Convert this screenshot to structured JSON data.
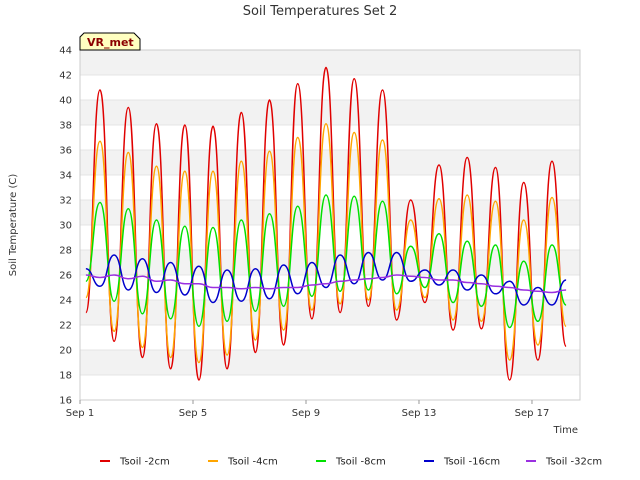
{
  "chart_data": {
    "type": "line",
    "title": "Soil Temperatures Set 2",
    "xlabel": "Time",
    "ylabel": "Soil Temperature (C)",
    "station_badge": "VR_met",
    "xlim": [
      "2025-09-01",
      "2025-09-18.7"
    ],
    "ylim": [
      16,
      44
    ],
    "yticks": [
      16,
      18,
      20,
      22,
      24,
      26,
      28,
      30,
      32,
      34,
      36,
      38,
      40,
      42,
      44
    ],
    "xticks": [
      {
        "date": "2025-09-01",
        "label": "Sep 1"
      },
      {
        "date": "2025-09-05",
        "label": "Sep 5"
      },
      {
        "date": "2025-09-09",
        "label": "Sep 9"
      },
      {
        "date": "2025-09-13",
        "label": "Sep 13"
      },
      {
        "date": "2025-09-17",
        "label": "Sep 17"
      }
    ],
    "grid": "horizontal-bands",
    "legend_placement": "bottom",
    "x_start": "2025-09-01 05:00",
    "x_step_hours": 12,
    "series": [
      {
        "name": "Tsoil -2cm",
        "color": "#e00000",
        "values": [
          23.0,
          40.8,
          20.7,
          39.4,
          19.4,
          38.1,
          18.5,
          38.0,
          17.6,
          37.9,
          18.5,
          39.0,
          19.8,
          40.0,
          20.4,
          41.3,
          22.5,
          42.6,
          23.0,
          41.7,
          23.5,
          40.8,
          22.4,
          32.0,
          23.8,
          34.8,
          21.6,
          35.4,
          21.7,
          34.6,
          17.6,
          33.4,
          19.2,
          35.1,
          20.3
        ]
      },
      {
        "name": "Tsoil -4cm",
        "color": "#ffa500",
        "values": [
          24.2,
          36.7,
          21.5,
          35.8,
          20.2,
          34.7,
          19.4,
          34.3,
          19.0,
          34.3,
          19.6,
          35.1,
          20.8,
          35.9,
          21.6,
          37.0,
          23.2,
          38.1,
          23.7,
          37.4,
          24.0,
          36.8,
          23.2,
          30.4,
          24.2,
          32.1,
          22.4,
          32.4,
          22.3,
          31.9,
          19.2,
          30.4,
          20.4,
          32.2,
          21.9
        ]
      },
      {
        "name": "Tsoil -8cm",
        "color": "#00e000",
        "values": [
          25.5,
          31.8,
          23.9,
          31.3,
          22.9,
          30.4,
          22.5,
          29.9,
          21.9,
          29.8,
          22.3,
          30.4,
          23.1,
          30.9,
          23.5,
          31.5,
          24.3,
          32.4,
          24.7,
          32.3,
          24.8,
          31.9,
          24.5,
          28.3,
          25.0,
          29.3,
          23.8,
          28.7,
          23.5,
          28.4,
          21.8,
          27.1,
          22.3,
          28.4,
          23.6
        ]
      },
      {
        "name": "Tsoil -16cm",
        "color": "#0000cc",
        "values": [
          26.5,
          25.1,
          27.6,
          24.8,
          27.3,
          24.6,
          27.0,
          24.4,
          26.7,
          23.8,
          26.4,
          23.9,
          26.5,
          24.1,
          26.8,
          24.5,
          27.0,
          25.0,
          27.6,
          25.3,
          27.8,
          25.6,
          27.8,
          25.5,
          26.4,
          25.2,
          26.4,
          24.8,
          26.0,
          24.5,
          25.5,
          23.6,
          25.0,
          23.6,
          25.6
        ]
      },
      {
        "name": "Tsoil -32cm",
        "color": "#9a30e0",
        "values": [
          26.0,
          25.8,
          26.0,
          25.7,
          25.9,
          25.5,
          25.6,
          25.3,
          25.3,
          25.0,
          25.0,
          24.9,
          25.0,
          24.9,
          25.0,
          25.0,
          25.2,
          25.3,
          25.5,
          25.6,
          25.7,
          25.8,
          26.0,
          25.9,
          25.8,
          25.6,
          25.6,
          25.4,
          25.3,
          25.1,
          25.0,
          24.8,
          24.7,
          24.6,
          24.8
        ]
      }
    ]
  }
}
